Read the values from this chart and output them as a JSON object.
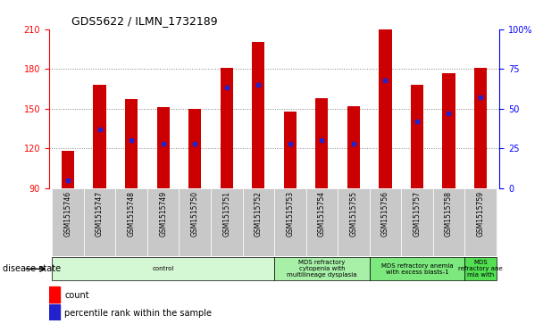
{
  "title": "GDS5622 / ILMN_1732189",
  "samples": [
    "GSM1515746",
    "GSM1515747",
    "GSM1515748",
    "GSM1515749",
    "GSM1515750",
    "GSM1515751",
    "GSM1515752",
    "GSM1515753",
    "GSM1515754",
    "GSM1515755",
    "GSM1515756",
    "GSM1515757",
    "GSM1515758",
    "GSM1515759"
  ],
  "counts": [
    118,
    168,
    157,
    151,
    150,
    181,
    200,
    148,
    158,
    152,
    210,
    168,
    177,
    181
  ],
  "percentile_ranks": [
    5,
    37,
    30,
    28,
    28,
    63,
    65,
    28,
    30,
    28,
    68,
    42,
    47,
    57
  ],
  "y_min": 90,
  "y_max": 210,
  "y_ticks": [
    90,
    120,
    150,
    180,
    210
  ],
  "y2_ticks": [
    0,
    25,
    50,
    75,
    100
  ],
  "bar_color": "#cc0000",
  "marker_color": "#2222cc",
  "disease_groups": [
    {
      "label": "control",
      "start": 0,
      "end": 7
    },
    {
      "label": "MDS refractory\ncytopenia with\nmultilineage dysplasia",
      "start": 7,
      "end": 10
    },
    {
      "label": "MDS refractory anemia\nwith excess blasts-1",
      "start": 10,
      "end": 13
    },
    {
      "label": "MDS\nrefractory ane\nmia with",
      "start": 13,
      "end": 14
    }
  ],
  "group_colors": [
    "#d4f7d4",
    "#a8f0a8",
    "#7de87d",
    "#52e052"
  ],
  "tick_bg_color": "#c8c8c8",
  "disease_state_label": "disease state",
  "legend_count": "count",
  "legend_percentile": "percentile rank within the sample"
}
